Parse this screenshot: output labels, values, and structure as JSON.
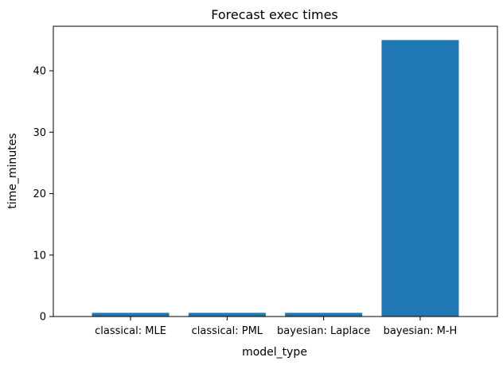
{
  "chart_data": {
    "type": "bar",
    "title": "Forecast exec times",
    "xlabel": "model_type",
    "ylabel": "time_minutes",
    "categories": [
      "classical: MLE",
      "classical: PML",
      "bayesian: Laplace",
      "bayesian: M-H"
    ],
    "values": [
      0.6,
      0.6,
      0.6,
      45.0
    ],
    "ylim": [
      0,
      47.25
    ],
    "yticks": [
      0,
      10,
      20,
      30,
      40
    ],
    "bar_color": "#1f77b4",
    "grid": false
  }
}
